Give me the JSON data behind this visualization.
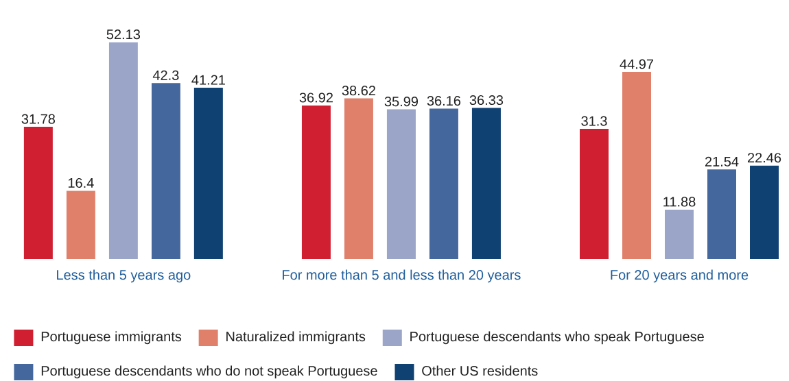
{
  "chart_data": {
    "type": "bar",
    "categories": [
      "Less than 5 years ago",
      "For more than 5 and less than 20 years",
      "For 20 years and more"
    ],
    "series": [
      {
        "name": "Portuguese immigrants",
        "color": "#d01f31",
        "values": [
          31.78,
          36.92,
          31.3
        ]
      },
      {
        "name": "Naturalized immigrants",
        "color": "#e0806b",
        "values": [
          16.4,
          38.62,
          44.97
        ]
      },
      {
        "name": "Portuguese descendants who speak Portuguese",
        "color": "#9aa5c8",
        "values": [
          52.13,
          35.99,
          11.88
        ]
      },
      {
        "name": "Portuguese descendants who do not speak Portuguese",
        "color": "#44679e",
        "values": [
          42.3,
          36.16,
          21.54
        ]
      },
      {
        "name": "Other US residents",
        "color": "#0f4172",
        "values": [
          41.21,
          36.33,
          22.46
        ]
      }
    ],
    "data_labels": true,
    "legend": "bottom"
  }
}
